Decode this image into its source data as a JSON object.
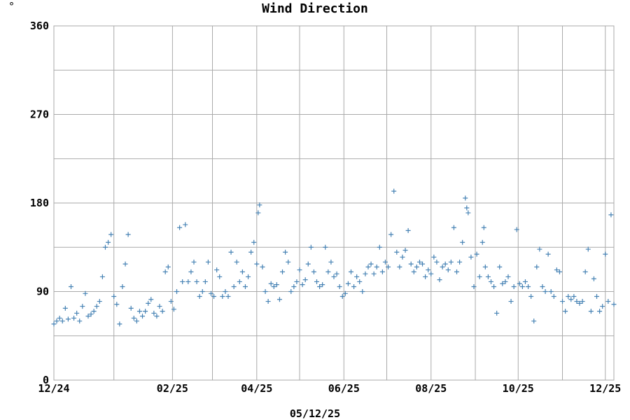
{
  "chart_data": {
    "type": "scatter",
    "title": "Wind Direction",
    "unit_label": "°",
    "date_label": "05/12/25",
    "ylim": [
      0,
      360
    ],
    "yticks": [
      0,
      90,
      180,
      270,
      360
    ],
    "ytick_labels": [
      "0",
      "90",
      "180",
      "270",
      "360"
    ],
    "xlim": [
      "2024-12-04",
      "2025-12-31"
    ],
    "xticks": [
      "2024-12-04",
      "2025-01-15",
      "2025-02-25",
      "2025-03-25",
      "2025-04-25",
      "2025-05-25",
      "2025-06-25",
      "2025-07-25",
      "2025-08-25",
      "2025-09-25",
      "2025-10-25",
      "2025-11-25",
      "2025-12-25"
    ],
    "xtick_labels": [
      "12/24",
      "",
      "02/25",
      "",
      "04/25",
      "",
      "06/25",
      "",
      "08/25",
      "",
      "10/25",
      "",
      "12/25"
    ],
    "grid": true,
    "marker": "+",
    "colors": {
      "points": "#4682b4",
      "title": "#4682b4",
      "grid": "#aaaaaa"
    },
    "series": [
      {
        "points": [
          [
            "2024-12-04",
            57
          ],
          [
            "2024-12-06",
            60
          ],
          [
            "2024-12-08",
            63
          ],
          [
            "2024-12-10",
            60
          ],
          [
            "2024-12-12",
            73
          ],
          [
            "2024-12-14",
            62
          ],
          [
            "2024-12-16",
            95
          ],
          [
            "2024-12-18",
            63
          ],
          [
            "2024-12-20",
            68
          ],
          [
            "2024-12-22",
            60
          ],
          [
            "2024-12-24",
            75
          ],
          [
            "2024-12-26",
            88
          ],
          [
            "2024-12-28",
            65
          ],
          [
            "2024-12-30",
            67
          ],
          [
            "2025-01-01",
            70
          ],
          [
            "2025-01-03",
            75
          ],
          [
            "2025-01-05",
            80
          ],
          [
            "2025-01-07",
            105
          ],
          [
            "2025-01-09",
            135
          ],
          [
            "2025-01-11",
            140
          ],
          [
            "2025-01-13",
            148
          ],
          [
            "2025-01-15",
            85
          ],
          [
            "2025-01-17",
            77
          ],
          [
            "2025-01-19",
            57
          ],
          [
            "2025-01-21",
            95
          ],
          [
            "2025-01-23",
            118
          ],
          [
            "2025-01-25",
            148
          ],
          [
            "2025-01-27",
            73
          ],
          [
            "2025-01-29",
            63
          ],
          [
            "2025-01-31",
            60
          ],
          [
            "2025-02-02",
            70
          ],
          [
            "2025-02-04",
            65
          ],
          [
            "2025-02-06",
            70
          ],
          [
            "2025-02-08",
            78
          ],
          [
            "2025-02-10",
            82
          ],
          [
            "2025-02-12",
            68
          ],
          [
            "2025-02-14",
            65
          ],
          [
            "2025-02-16",
            75
          ],
          [
            "2025-02-18",
            70
          ],
          [
            "2025-02-20",
            110
          ],
          [
            "2025-02-22",
            115
          ],
          [
            "2025-02-24",
            80
          ],
          [
            "2025-02-26",
            72
          ],
          [
            "2025-02-28",
            90
          ],
          [
            "2025-03-02",
            155
          ],
          [
            "2025-03-04",
            100
          ],
          [
            "2025-03-06",
            158
          ],
          [
            "2025-03-08",
            100
          ],
          [
            "2025-03-10",
            110
          ],
          [
            "2025-03-12",
            120
          ],
          [
            "2025-03-14",
            100
          ],
          [
            "2025-03-16",
            85
          ],
          [
            "2025-03-18",
            90
          ],
          [
            "2025-03-20",
            100
          ],
          [
            "2025-03-22",
            120
          ],
          [
            "2025-03-24",
            88
          ],
          [
            "2025-03-26",
            85
          ],
          [
            "2025-03-28",
            112
          ],
          [
            "2025-03-30",
            105
          ],
          [
            "2025-04-01",
            85
          ],
          [
            "2025-04-03",
            90
          ],
          [
            "2025-04-05",
            85
          ],
          [
            "2025-04-07",
            130
          ],
          [
            "2025-04-09",
            95
          ],
          [
            "2025-04-11",
            120
          ],
          [
            "2025-04-13",
            100
          ],
          [
            "2025-04-15",
            110
          ],
          [
            "2025-04-17",
            95
          ],
          [
            "2025-04-19",
            105
          ],
          [
            "2025-04-21",
            130
          ],
          [
            "2025-04-23",
            140
          ],
          [
            "2025-04-25",
            118
          ],
          [
            "2025-04-26",
            170
          ],
          [
            "2025-04-27",
            178
          ],
          [
            "2025-04-29",
            115
          ],
          [
            "2025-05-01",
            90
          ],
          [
            "2025-05-03",
            80
          ],
          [
            "2025-05-05",
            98
          ],
          [
            "2025-05-07",
            95
          ],
          [
            "2025-05-09",
            97
          ],
          [
            "2025-05-11",
            82
          ],
          [
            "2025-05-13",
            110
          ],
          [
            "2025-05-15",
            130
          ],
          [
            "2025-05-17",
            120
          ],
          [
            "2025-05-19",
            90
          ],
          [
            "2025-05-21",
            95
          ],
          [
            "2025-05-23",
            100
          ],
          [
            "2025-05-25",
            112
          ],
          [
            "2025-05-27",
            97
          ],
          [
            "2025-05-29",
            102
          ],
          [
            "2025-05-31",
            118
          ],
          [
            "2025-06-02",
            135
          ],
          [
            "2025-06-04",
            110
          ],
          [
            "2025-06-06",
            100
          ],
          [
            "2025-06-08",
            95
          ],
          [
            "2025-06-10",
            97
          ],
          [
            "2025-06-12",
            135
          ],
          [
            "2025-06-14",
            110
          ],
          [
            "2025-06-16",
            120
          ],
          [
            "2025-06-18",
            105
          ],
          [
            "2025-06-20",
            108
          ],
          [
            "2025-06-22",
            95
          ],
          [
            "2025-06-24",
            85
          ],
          [
            "2025-06-26",
            88
          ],
          [
            "2025-06-28",
            98
          ],
          [
            "2025-06-30",
            110
          ],
          [
            "2025-07-02",
            95
          ],
          [
            "2025-07-04",
            105
          ],
          [
            "2025-07-06",
            100
          ],
          [
            "2025-07-08",
            90
          ],
          [
            "2025-07-10",
            108
          ],
          [
            "2025-07-12",
            115
          ],
          [
            "2025-07-14",
            118
          ],
          [
            "2025-07-16",
            108
          ],
          [
            "2025-07-18",
            115
          ],
          [
            "2025-07-20",
            135
          ],
          [
            "2025-07-22",
            110
          ],
          [
            "2025-07-24",
            120
          ],
          [
            "2025-07-26",
            115
          ],
          [
            "2025-07-28",
            148
          ],
          [
            "2025-07-30",
            192
          ],
          [
            "2025-08-01",
            130
          ],
          [
            "2025-08-03",
            115
          ],
          [
            "2025-08-05",
            125
          ],
          [
            "2025-08-07",
            132
          ],
          [
            "2025-08-09",
            152
          ],
          [
            "2025-08-11",
            118
          ],
          [
            "2025-08-13",
            110
          ],
          [
            "2025-08-15",
            115
          ],
          [
            "2025-08-17",
            120
          ],
          [
            "2025-08-19",
            118
          ],
          [
            "2025-08-21",
            105
          ],
          [
            "2025-08-23",
            112
          ],
          [
            "2025-08-25",
            108
          ],
          [
            "2025-08-27",
            125
          ],
          [
            "2025-08-29",
            120
          ],
          [
            "2025-08-31",
            102
          ],
          [
            "2025-09-02",
            115
          ],
          [
            "2025-09-04",
            118
          ],
          [
            "2025-09-06",
            112
          ],
          [
            "2025-09-08",
            120
          ],
          [
            "2025-09-10",
            155
          ],
          [
            "2025-09-12",
            110
          ],
          [
            "2025-09-14",
            120
          ],
          [
            "2025-09-16",
            140
          ],
          [
            "2025-09-18",
            185
          ],
          [
            "2025-09-19",
            175
          ],
          [
            "2025-09-20",
            170
          ],
          [
            "2025-09-22",
            125
          ],
          [
            "2025-09-24",
            95
          ],
          [
            "2025-09-26",
            128
          ],
          [
            "2025-09-28",
            105
          ],
          [
            "2025-09-30",
            140
          ],
          [
            "2025-10-01",
            155
          ],
          [
            "2025-10-02",
            115
          ],
          [
            "2025-10-04",
            105
          ],
          [
            "2025-10-06",
            100
          ],
          [
            "2025-10-08",
            95
          ],
          [
            "2025-10-10",
            68
          ],
          [
            "2025-10-12",
            115
          ],
          [
            "2025-10-14",
            98
          ],
          [
            "2025-10-16",
            100
          ],
          [
            "2025-10-18",
            105
          ],
          [
            "2025-10-20",
            80
          ],
          [
            "2025-10-22",
            95
          ],
          [
            "2025-10-24",
            153
          ],
          [
            "2025-10-26",
            98
          ],
          [
            "2025-10-28",
            95
          ],
          [
            "2025-10-30",
            100
          ],
          [
            "2025-11-01",
            95
          ],
          [
            "2025-11-03",
            85
          ],
          [
            "2025-11-05",
            60
          ],
          [
            "2025-11-07",
            115
          ],
          [
            "2025-11-09",
            133
          ],
          [
            "2025-11-11",
            95
          ],
          [
            "2025-11-13",
            90
          ],
          [
            "2025-11-15",
            128
          ],
          [
            "2025-11-17",
            90
          ],
          [
            "2025-11-19",
            85
          ],
          [
            "2025-11-21",
            112
          ],
          [
            "2025-11-23",
            110
          ],
          [
            "2025-11-25",
            80
          ],
          [
            "2025-11-27",
            70
          ],
          [
            "2025-11-29",
            85
          ],
          [
            "2025-12-01",
            82
          ],
          [
            "2025-12-03",
            85
          ],
          [
            "2025-12-05",
            80
          ],
          [
            "2025-12-07",
            78
          ],
          [
            "2025-12-09",
            80
          ],
          [
            "2025-12-11",
            110
          ],
          [
            "2025-12-13",
            133
          ],
          [
            "2025-12-15",
            70
          ],
          [
            "2025-12-17",
            103
          ],
          [
            "2025-12-19",
            85
          ],
          [
            "2025-12-21",
            70
          ],
          [
            "2025-12-23",
            75
          ],
          [
            "2025-12-25",
            128
          ],
          [
            "2025-12-27",
            80
          ],
          [
            "2025-12-29",
            168
          ],
          [
            "2025-12-31",
            77
          ]
        ]
      }
    ]
  }
}
